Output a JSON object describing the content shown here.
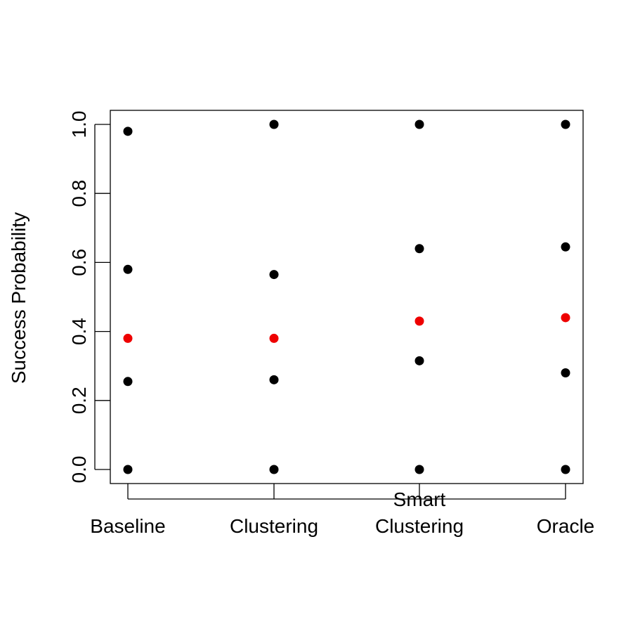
{
  "chart_data": {
    "type": "scatter",
    "title": "",
    "xlabel": "",
    "ylabel": "Success Probability",
    "categories": [
      [
        "Baseline"
      ],
      [
        "Clustering"
      ],
      [
        "Smart",
        "Clustering"
      ],
      [
        "Oracle"
      ]
    ],
    "ylim": [
      -0.04,
      1.04
    ],
    "yticks": [
      "0.0",
      "0.2",
      "0.4",
      "0.6",
      "0.8",
      "1.0"
    ],
    "ytick_values": [
      0,
      0.2,
      0.4,
      0.6,
      0.8,
      1.0
    ],
    "grid": false,
    "legend": "none",
    "series": [
      {
        "color": "#000000",
        "values": [
          [
            0.0,
            0.255,
            0.58,
            0.98
          ],
          [
            0.0,
            0.26,
            0.565,
            1.0
          ],
          [
            0.0,
            0.315,
            0.64,
            1.0
          ],
          [
            0.0,
            0.28,
            0.645,
            1.0
          ]
        ]
      },
      {
        "color": "#ee0000",
        "values": [
          [
            0.38
          ],
          [
            0.38
          ],
          [
            0.43
          ],
          [
            0.44
          ]
        ]
      }
    ]
  }
}
